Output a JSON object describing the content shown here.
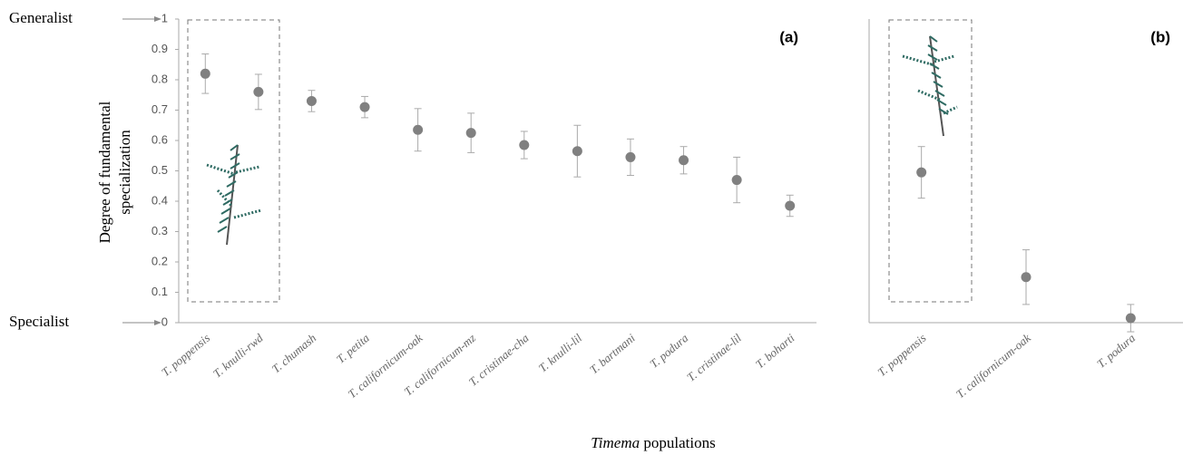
{
  "chart_data": [
    {
      "type": "scatter",
      "panel": "(a)",
      "ylabel": [
        "Degree of fundamental",
        "specialization"
      ],
      "xlabel_species": "Timema",
      "xlabel": "populations",
      "annotations": [
        "Generalist",
        "Specialist"
      ],
      "categories": [
        "T. poppensis",
        "T. knulli-rwd",
        "T. chumash",
        "T. petita",
        "T. californicum-oak",
        "T. californicum-mz",
        "T. cristinae-cha",
        "T. knulli-lil",
        "T. bartmani",
        "T. podura",
        "T. cristinae-lil",
        "T. boharti"
      ],
      "values": [
        0.82,
        0.76,
        0.73,
        0.71,
        0.635,
        0.625,
        0.585,
        0.565,
        0.545,
        0.535,
        0.47,
        0.385
      ],
      "errors": [
        0.065,
        0.058,
        0.035,
        0.035,
        0.07,
        0.065,
        0.045,
        0.085,
        0.06,
        0.045,
        0.075,
        0.035
      ],
      "color": "#808080",
      "ylim": [
        0,
        1
      ],
      "yticks": [
        0,
        0.1,
        0.2,
        0.3,
        0.4,
        0.5,
        0.6,
        0.7,
        0.8,
        0.9,
        1
      ]
    },
    {
      "type": "scatter",
      "panel": "(b)",
      "categories": [
        "T. poppensis",
        "T. californicum-oak",
        "T. podura"
      ],
      "values": [
        0.495,
        0.15,
        0.015
      ],
      "errors": [
        0.085,
        0.09,
        0.045
      ],
      "color": "#808080",
      "ylim": [
        0,
        1
      ]
    }
  ]
}
